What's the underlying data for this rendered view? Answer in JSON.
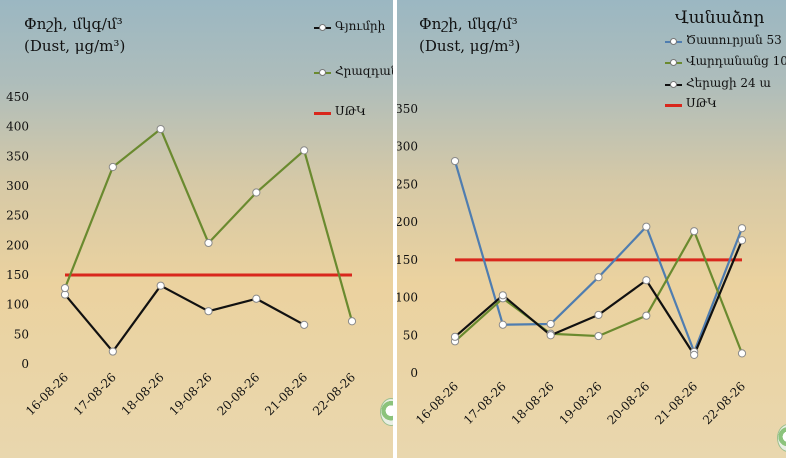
{
  "colors": {
    "limit": "#d9271c",
    "black": "#111111",
    "green": "#6a8a2f",
    "blue": "#4f7db0",
    "oliveDark": "#58721e"
  },
  "left": {
    "title_line1": "Փոշի, մկգ/մ³",
    "title_line2": "(Dust, μg/m³)",
    "legend": {
      "gyumri": "Գյումրի",
      "hrazdan": "Հրազդան",
      "limit": "ՍԹԿ"
    }
  },
  "right": {
    "title_line1": "Փոշի, մկգ/մ³",
    "title_line2": "(Dust, μg/m³)",
    "legend": {
      "title": "Վանաձոր",
      "s1": "Ծատուրյան 53",
      "s2": "Վարդանանց 10",
      "s3": "Հերացի 24 ա",
      "limit": "ՍԹԿ"
    }
  },
  "chart_data": [
    {
      "type": "line",
      "title": "Փոշի, մկգ/մ³ (Dust, μg/m³)",
      "categories": [
        "16-08-26",
        "17-08-26",
        "18-08-26",
        "19-08-26",
        "20-08-26",
        "21-08-26",
        "22-08-26"
      ],
      "ylim": [
        0,
        450
      ],
      "yticks": [
        0,
        50,
        100,
        150,
        200,
        250,
        300,
        350,
        400,
        450
      ],
      "grid": false,
      "legend_position": "top-right",
      "series": [
        {
          "name": "Գյումրի",
          "color": "#111111",
          "values": [
            117,
            21,
            132,
            89,
            110,
            66,
            null
          ]
        },
        {
          "name": "Հրազդան",
          "color": "#6a8a2f",
          "values": [
            128,
            332,
            396,
            204,
            289,
            360,
            72
          ]
        },
        {
          "name": "ՍԹԿ",
          "color": "#d9271c",
          "values": [
            150,
            150,
            150,
            150,
            150,
            150,
            150
          ]
        }
      ]
    },
    {
      "type": "line",
      "title": "Փոշի, մկգ/մ³ (Dust, μg/m³)",
      "legend_title": "Վանաձոր",
      "categories": [
        "16-08-26",
        "17-08-26",
        "18-08-26",
        "19-08-26",
        "20-08-26",
        "21-08-26",
        "22-08-26"
      ],
      "ylim": [
        0,
        350
      ],
      "yticks": [
        0,
        50,
        100,
        150,
        200,
        250,
        300,
        350
      ],
      "grid": false,
      "legend_position": "top-right",
      "series": [
        {
          "name": "Ծատուրյան 53",
          "color": "#4f7db0",
          "values": [
            281,
            64,
            65,
            127,
            194,
            28,
            192
          ]
        },
        {
          "name": "Վարդանանց 10",
          "color": "#6a8a2f",
          "values": [
            42,
            99,
            52,
            49,
            76,
            188,
            26
          ]
        },
        {
          "name": "Հերացի 24 ա",
          "color": "#111111",
          "values": [
            48,
            103,
            50,
            77,
            123,
            24,
            176
          ]
        },
        {
          "name": "ՍԹԿ",
          "color": "#d9271c",
          "values": [
            150,
            150,
            150,
            150,
            150,
            150,
            150
          ]
        }
      ]
    }
  ]
}
